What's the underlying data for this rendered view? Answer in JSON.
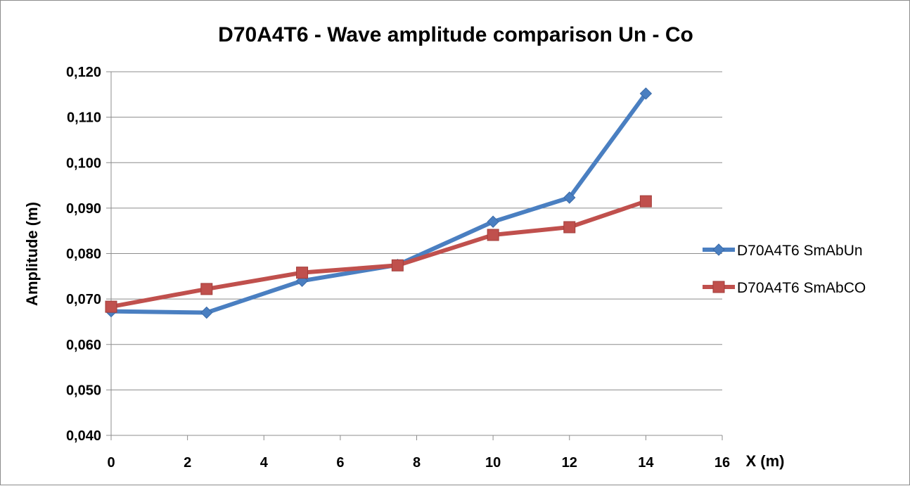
{
  "chart_data": {
    "type": "line",
    "title": "D70A4T6 - Wave amplitude comparison Un - Co",
    "xlabel": "X (m)",
    "ylabel": "Amplitude (m)",
    "xlim": [
      0,
      16
    ],
    "ylim": [
      0.04,
      0.12
    ],
    "x_ticks": [
      "0",
      "2",
      "4",
      "6",
      "8",
      "10",
      "12",
      "14",
      "16"
    ],
    "y_ticks": [
      "0,040",
      "0,050",
      "0,060",
      "0,070",
      "0,080",
      "0,090",
      "0,100",
      "0,110",
      "0,120"
    ],
    "grid": true,
    "legend_position": "right",
    "series": [
      {
        "name": "D70A4T6 SmAbUn",
        "color": "#4a7fc1",
        "marker": "diamond",
        "points": [
          [
            0,
            0.0673
          ],
          [
            2.5,
            0.067
          ],
          [
            5,
            0.074
          ],
          [
            7.5,
            0.0775
          ],
          [
            10,
            0.087
          ],
          [
            12,
            0.0923
          ],
          [
            14,
            0.1152
          ]
        ]
      },
      {
        "name": "D70A4T6 SmAbCO",
        "color": "#c0504d",
        "marker": "square",
        "points": [
          [
            0,
            0.0683
          ],
          [
            2.5,
            0.0722
          ],
          [
            5,
            0.0758
          ],
          [
            7.5,
            0.0774
          ],
          [
            10,
            0.0841
          ],
          [
            12,
            0.0858
          ],
          [
            14,
            0.0915
          ]
        ]
      }
    ]
  }
}
